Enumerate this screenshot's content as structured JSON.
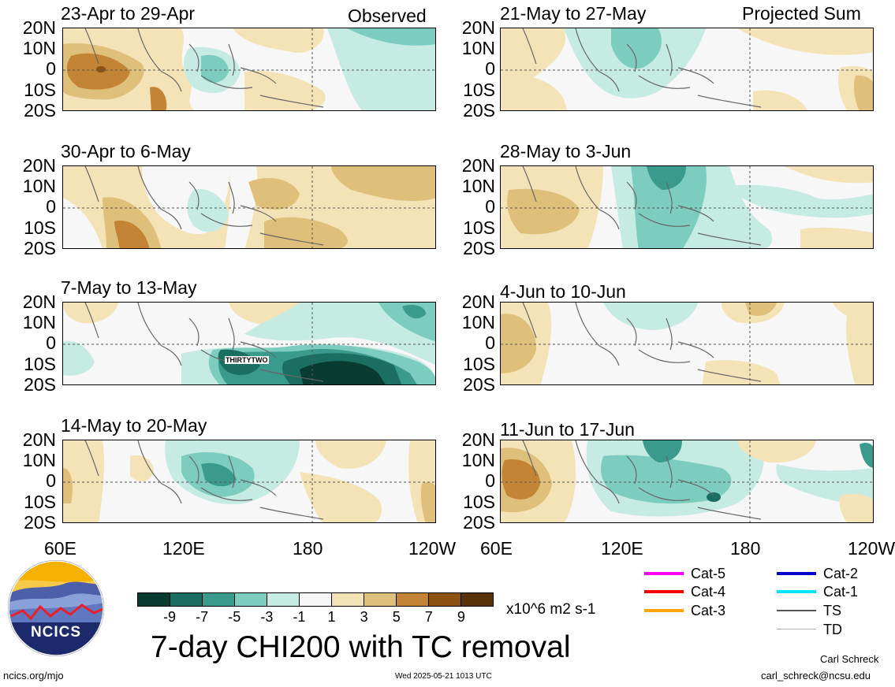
{
  "header": {
    "left_label": "Observed",
    "right_label": "Projected Sum"
  },
  "panels_left": [
    {
      "title": "23-Apr to 29-Apr"
    },
    {
      "title": "30-Apr to 6-May"
    },
    {
      "title": "7-May to 13-May",
      "storm_label": "THIRTYTWO"
    },
    {
      "title": "14-May to 20-May"
    }
  ],
  "panels_right": [
    {
      "title": "21-May to 27-May"
    },
    {
      "title": "28-May to 3-Jun"
    },
    {
      "title": "4-Jun to 10-Jun"
    },
    {
      "title": "11-Jun to 17-Jun"
    }
  ],
  "lat_labels": [
    "20N",
    "10N",
    "0",
    "10S",
    "20S"
  ],
  "lon_labels": [
    "60E",
    "120E",
    "180",
    "120W"
  ],
  "colorbar": {
    "ticks": [
      "-9",
      "-7",
      "-5",
      "-3",
      "-1",
      "1",
      "3",
      "5",
      "7",
      "9"
    ],
    "units": "x10^6 m2 s-1",
    "colors": [
      "#0a3b30",
      "#1a6f62",
      "#3a9a8c",
      "#7ccdc0",
      "#c6ebe3",
      "#f7f7f7",
      "#f5e3b8",
      "#dfc07a",
      "#c38535",
      "#8c5211",
      "#5a3208"
    ]
  },
  "main_title": "7-day CHI200 with TC removal",
  "legend": [
    {
      "label": "Cat-5",
      "color": "#ff00ff"
    },
    {
      "label": "Cat-4",
      "color": "#ff0000"
    },
    {
      "label": "Cat-3",
      "color": "#ffa500"
    },
    {
      "label": "Cat-2",
      "color": "#0000cc"
    },
    {
      "label": "Cat-1",
      "color": "#00e5ff"
    },
    {
      "label": "TS",
      "color": "#555555"
    },
    {
      "label": "TD",
      "color": "#aaaaaa"
    }
  ],
  "logo": {
    "text": "NCICS"
  },
  "footer": {
    "url": "ncics.org/mjo",
    "timestamp": "Wed 2025-05-21 1013 UTC",
    "author": "Carl Schreck",
    "email": "carl_schreck@ncsu.edu"
  }
}
